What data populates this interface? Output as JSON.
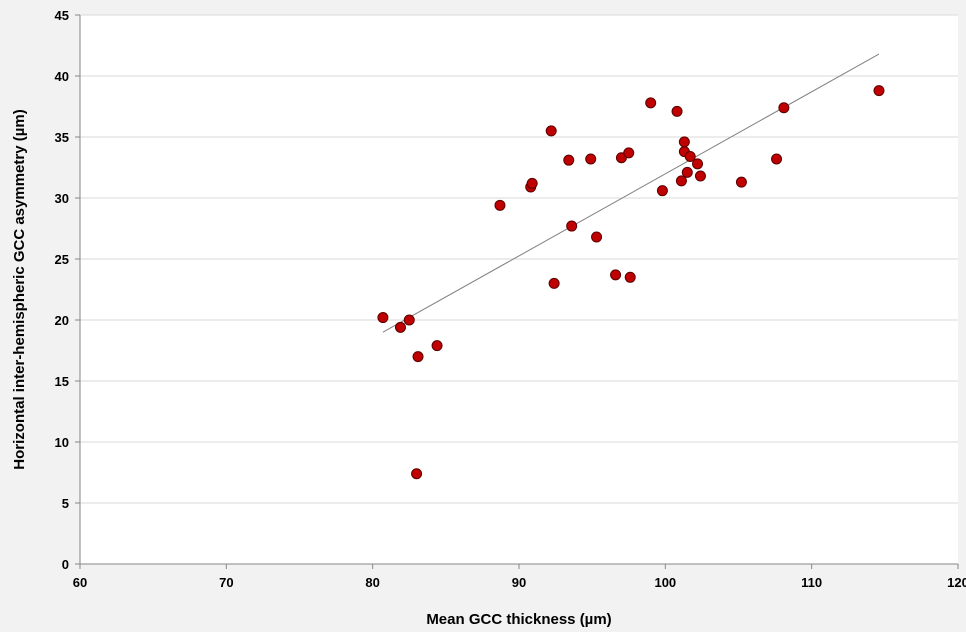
{
  "chart_data": {
    "type": "scatter",
    "title": "",
    "xlabel": "Mean GCC thickness (µm)",
    "ylabel": "Horizontal inter-hemispheric GCC asymmetry (µm)",
    "xlim": [
      60,
      120
    ],
    "ylim": [
      0,
      45
    ],
    "x_ticks": [
      60,
      70,
      80,
      90,
      100,
      110,
      120
    ],
    "y_ticks": [
      0,
      5,
      10,
      15,
      20,
      25,
      30,
      35,
      40,
      45
    ],
    "grid": "horizontal",
    "legend": "none",
    "marker_color": "#c00000",
    "marker_edge_color": "#5a0000",
    "trendline_color": "#808080",
    "series": [
      {
        "x": [
          80.7,
          81.9,
          82.5,
          83.1,
          83.0,
          84.4,
          88.7,
          90.8,
          90.9,
          92.2,
          92.4,
          93.4,
          93.6,
          94.9,
          95.3,
          96.6,
          97.0,
          97.5,
          97.6,
          99.0,
          99.8,
          100.8,
          101.1,
          101.3,
          101.3,
          101.5,
          101.7,
          102.2,
          102.4,
          105.2,
          107.6,
          108.1,
          114.6
        ],
        "y": [
          20.2,
          19.4,
          20.0,
          17.0,
          7.4,
          17.9,
          29.4,
          30.9,
          31.2,
          35.5,
          23.0,
          33.1,
          27.7,
          33.2,
          26.8,
          23.7,
          33.3,
          33.7,
          23.5,
          37.8,
          30.6,
          37.1,
          31.4,
          34.6,
          33.8,
          32.1,
          33.4,
          32.8,
          31.8,
          31.3,
          33.2,
          37.4,
          38.8
        ]
      }
    ],
    "trendline": {
      "x": [
        80.7,
        114.6
      ],
      "y": [
        19.0,
        41.8
      ]
    }
  }
}
